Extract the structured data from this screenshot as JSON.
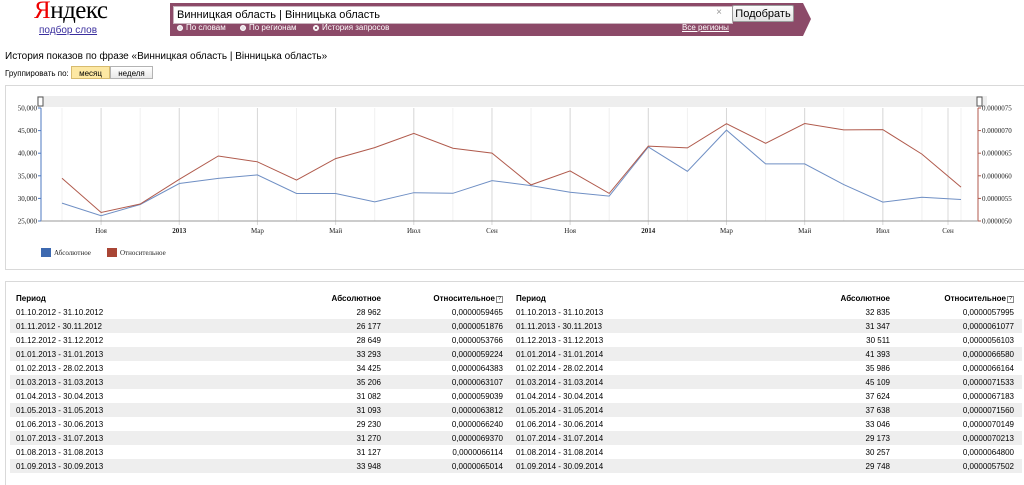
{
  "header": {
    "logo_first": "Я",
    "logo_rest": "ндекс",
    "logo_subtitle": "подбор слов",
    "search_value": "Винницкая область | Вінницька область",
    "submit_label": "Подобрать",
    "clear_icon": "×",
    "radio_words": "По словам",
    "radio_regions": "По регионам",
    "radio_history": "История запросов",
    "all_regions": "Все регионы",
    "brand_color": "#8c4a68"
  },
  "page": {
    "title": "История показов по фразе «Винницкая область | Вінницька область»",
    "group_label": "Группировать по:",
    "group_month": "месяц",
    "group_week": "неделя"
  },
  "chart_data": {
    "type": "line",
    "x": [
      "2012-10",
      "2012-11",
      "2012-12",
      "2013-01",
      "2013-02",
      "2013-03",
      "2013-04",
      "2013-05",
      "2013-06",
      "2013-07",
      "2013-08",
      "2013-09",
      "2013-10",
      "2013-11",
      "2013-12",
      "2014-01",
      "2014-02",
      "2014-03",
      "2014-04",
      "2014-05",
      "2014-06",
      "2014-07",
      "2014-08",
      "2014-09"
    ],
    "x_tick_labels": [
      "Ноя",
      "2013",
      "Мар",
      "Май",
      "Июл",
      "Сен",
      "Ноя",
      "2014",
      "Мар",
      "Май",
      "Июл",
      "Сен"
    ],
    "y_left_ticks": [
      "50,000",
      "45,000",
      "40,000",
      "35,000",
      "30,000",
      "25,000"
    ],
    "y_right_ticks": [
      "0.0000075",
      "0.0000070",
      "0.0000065",
      "0.0000060",
      "0.0000055",
      "0.0000050"
    ],
    "y_left_range": [
      25000,
      50000
    ],
    "y_right_range": [
      5e-06,
      7.5e-06
    ],
    "series": [
      {
        "name": "Абсолютное",
        "color": "#6f8fc4",
        "legend_color": "#3d69b0",
        "axis": "left",
        "values": [
          28962,
          26177,
          28649,
          33293,
          34425,
          35206,
          31082,
          31093,
          29230,
          31270,
          31127,
          33948,
          32835,
          31347,
          30511,
          41393,
          35986,
          45109,
          37624,
          37638,
          33046,
          29173,
          30257,
          29748
        ]
      },
      {
        "name": "Относительное",
        "color": "#b05a4c",
        "legend_color": "#a94535",
        "axis": "right",
        "values": [
          5.9465e-06,
          5.1876e-06,
          5.3766e-06,
          5.9224e-06,
          6.4383e-06,
          6.3107e-06,
          5.9039e-06,
          6.3812e-06,
          6.624e-06,
          6.937e-06,
          6.6114e-06,
          6.5014e-06,
          5.7995e-06,
          6.1077e-06,
          5.6103e-06,
          6.658e-06,
          6.6164e-06,
          7.1533e-06,
          6.7183e-06,
          7.156e-06,
          7.0149e-06,
          7.0213e-06,
          6.48e-06,
          5.7502e-06
        ]
      }
    ]
  },
  "table": {
    "headers": {
      "period": "Период",
      "absolute": "Абсолютное",
      "relative": "Относительное"
    },
    "left": [
      [
        "01.10.2012 - 31.10.2012",
        "28 962",
        "0,0000059465"
      ],
      [
        "01.11.2012 - 30.11.2012",
        "26 177",
        "0,0000051876"
      ],
      [
        "01.12.2012 - 31.12.2012",
        "28 649",
        "0,0000053766"
      ],
      [
        "01.01.2013 - 31.01.2013",
        "33 293",
        "0,0000059224"
      ],
      [
        "01.02.2013 - 28.02.2013",
        "34 425",
        "0,0000064383"
      ],
      [
        "01.03.2013 - 31.03.2013",
        "35 206",
        "0,0000063107"
      ],
      [
        "01.04.2013 - 30.04.2013",
        "31 082",
        "0,0000059039"
      ],
      [
        "01.05.2013 - 31.05.2013",
        "31 093",
        "0,0000063812"
      ],
      [
        "01.06.2013 - 30.06.2013",
        "29 230",
        "0,0000066240"
      ],
      [
        "01.07.2013 - 31.07.2013",
        "31 270",
        "0,0000069370"
      ],
      [
        "01.08.2013 - 31.08.2013",
        "31 127",
        "0,0000066114"
      ],
      [
        "01.09.2013 - 30.09.2013",
        "33 948",
        "0,0000065014"
      ]
    ],
    "right": [
      [
        "01.10.2013 - 31.10.2013",
        "32 835",
        "0,0000057995"
      ],
      [
        "01.11.2013 - 30.11.2013",
        "31 347",
        "0,0000061077"
      ],
      [
        "01.12.2013 - 31.12.2013",
        "30 511",
        "0,0000056103"
      ],
      [
        "01.01.2014 - 31.01.2014",
        "41 393",
        "0,0000066580"
      ],
      [
        "01.02.2014 - 28.02.2014",
        "35 986",
        "0,0000066164"
      ],
      [
        "01.03.2014 - 31.03.2014",
        "45 109",
        "0,0000071533"
      ],
      [
        "01.04.2014 - 30.04.2014",
        "37 624",
        "0,0000067183"
      ],
      [
        "01.05.2014 - 31.05.2014",
        "37 638",
        "0,0000071560"
      ],
      [
        "01.06.2014 - 30.06.2014",
        "33 046",
        "0,0000070149"
      ],
      [
        "01.07.2014 - 31.07.2014",
        "29 173",
        "0,0000070213"
      ],
      [
        "01.08.2014 - 31.08.2014",
        "30 257",
        "0,0000064800"
      ],
      [
        "01.09.2014 - 30.09.2014",
        "29 748",
        "0,0000057502"
      ]
    ]
  }
}
